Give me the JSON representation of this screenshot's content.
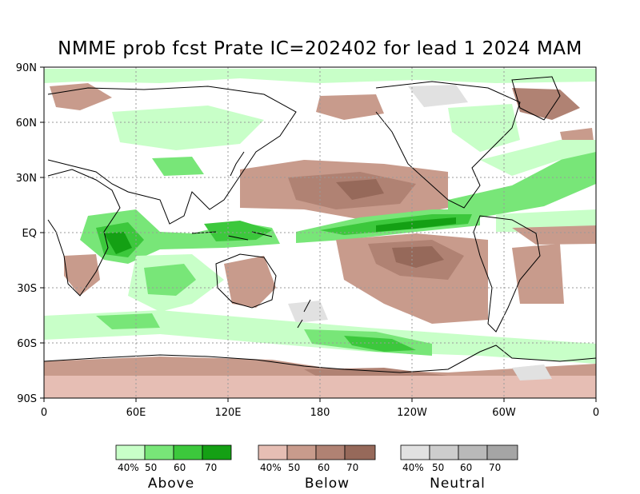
{
  "title": "NMME prob fcst Prate IC=202402 for lead 1 2024 MAM",
  "axes": {
    "lat_labels": [
      "90N",
      "60N",
      "30N",
      "30S",
      "60S",
      "90S"
    ],
    "eq_label": "EQ",
    "lon_labels": [
      "0",
      "60E",
      "120E",
      "180",
      "120W",
      "60W",
      "0"
    ]
  },
  "colors": {
    "above": [
      "#c8ffc8",
      "#78e678",
      "#3cc83c",
      "#14a014"
    ],
    "below": [
      "#e6beb4",
      "#c89b8c",
      "#b08273",
      "#96695a"
    ],
    "neutral": [
      "#e1e1e1",
      "#cdcdcd",
      "#b9b9b9",
      "#a5a5a5"
    ],
    "land_outline": "#000000",
    "grid": "#9a9a9a"
  },
  "legend": [
    {
      "name": "Above",
      "ticks": [
        "40%",
        "50",
        "60",
        "70"
      ]
    },
    {
      "name": "Below",
      "ticks": [
        "40%",
        "50",
        "60",
        "70"
      ]
    },
    {
      "name": "Neutral",
      "ticks": [
        "40%",
        "50",
        "60",
        "70"
      ]
    }
  ]
}
